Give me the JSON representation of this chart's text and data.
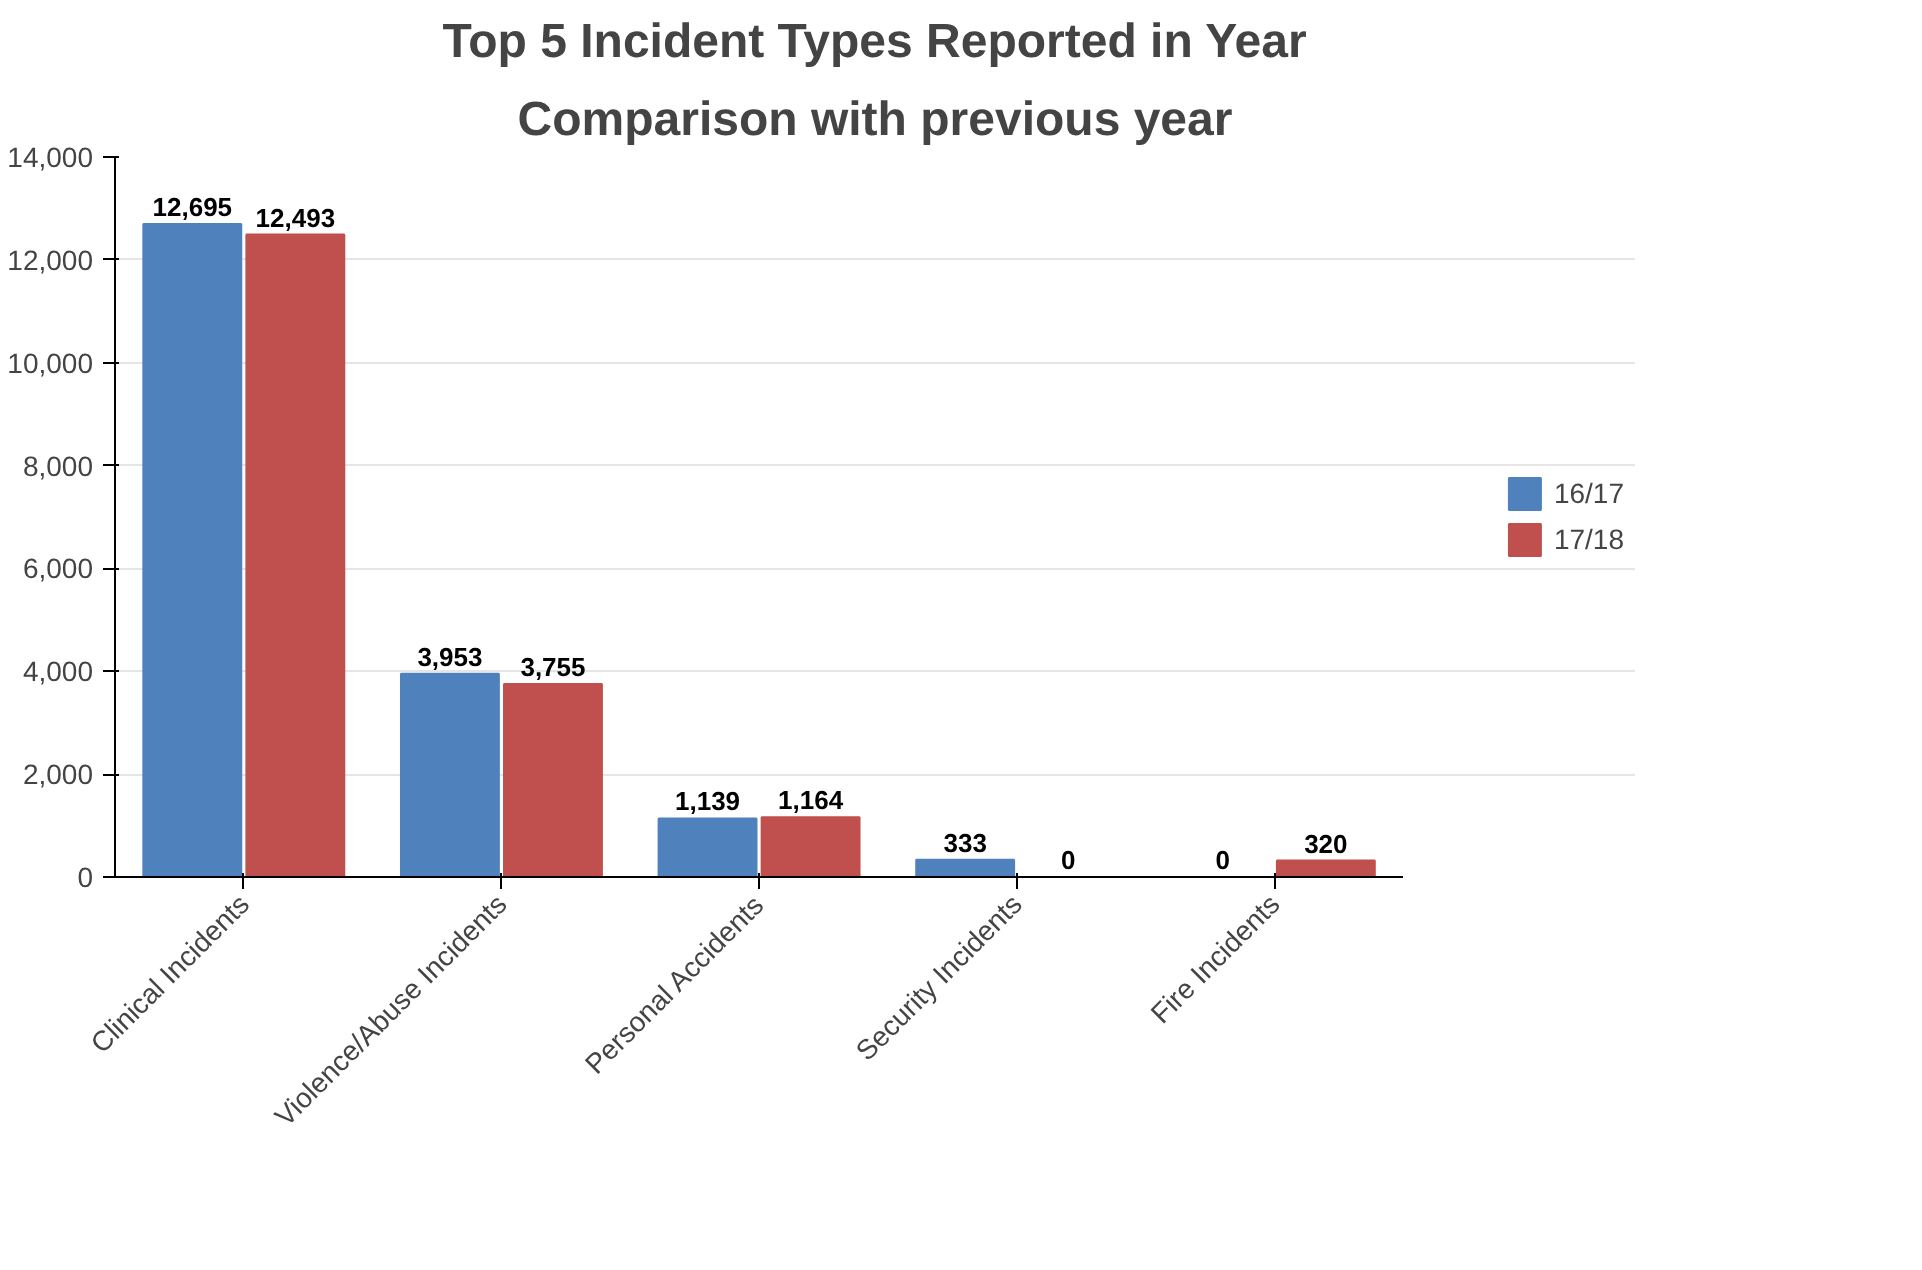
{
  "chart_data": {
    "type": "bar",
    "title": "Top 5 Incident Types Reported in Year",
    "subtitle": "Comparison with previous year",
    "categories": [
      "Clinical Incidents",
      "Violence/Abuse Incidents",
      "Personal Accidents",
      "Security Incidents",
      "Fire Incidents"
    ],
    "series": [
      {
        "name": "16/17",
        "color": "#4f81bd",
        "values": [
          12695,
          3953,
          1139,
          333,
          0
        ],
        "value_labels": [
          "12,695",
          "3,953",
          "1,139",
          "333",
          "0"
        ]
      },
      {
        "name": "17/18",
        "color": "#c0504d",
        "values": [
          12493,
          3755,
          1164,
          0,
          320
        ],
        "value_labels": [
          "12,493",
          "3,755",
          "1,164",
          "0",
          "320"
        ]
      }
    ],
    "ylim": [
      0,
      14000
    ],
    "yticks": [
      {
        "value": 0,
        "label": "0"
      },
      {
        "value": 2000,
        "label": "2,000"
      },
      {
        "value": 4000,
        "label": "4,000"
      },
      {
        "value": 6000,
        "label": "6,000"
      },
      {
        "value": 8000,
        "label": "8,000"
      },
      {
        "value": 10000,
        "label": "10,000"
      },
      {
        "value": 12000,
        "label": "12,000"
      },
      {
        "value": 14000,
        "label": "14,000"
      }
    ],
    "grid": "y",
    "legend": "right"
  }
}
